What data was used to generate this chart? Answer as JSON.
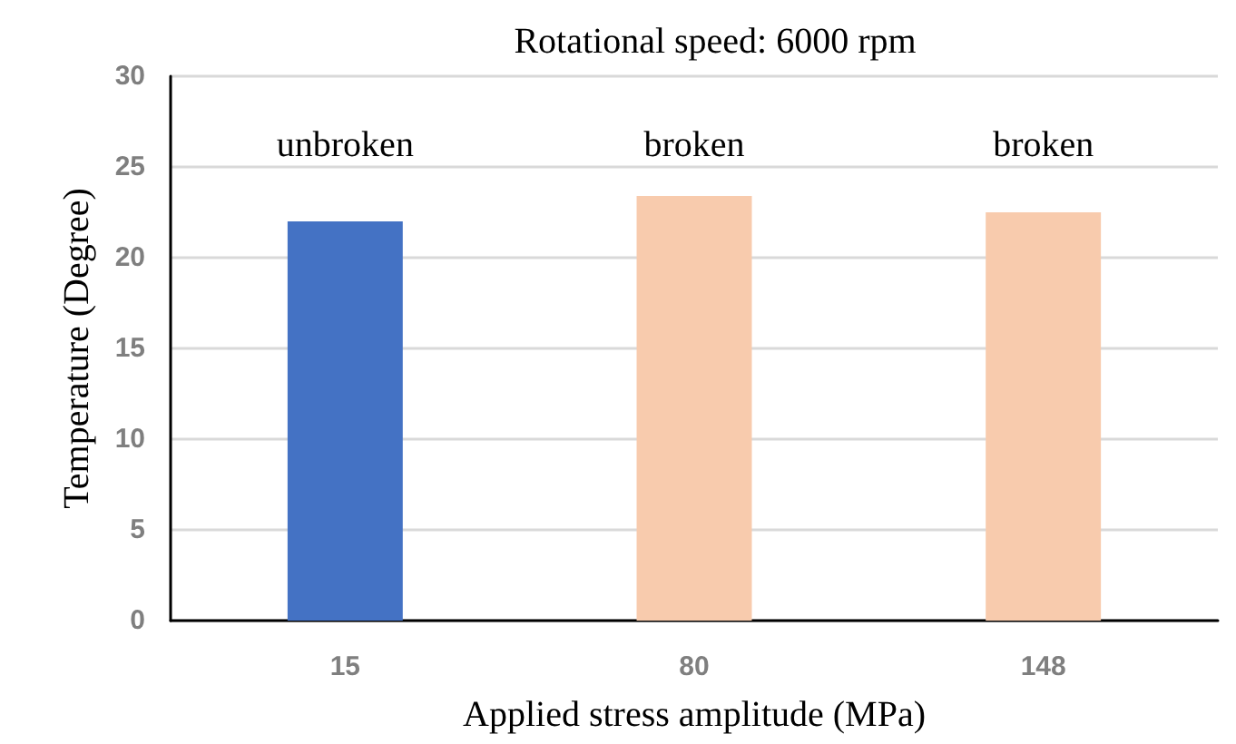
{
  "chart_data": {
    "type": "bar",
    "title": "Rotational speed: 6000 rpm",
    "xlabel": "Applied stress amplitude (MPa)",
    "ylabel": "Temperature (Degree)",
    "categories": [
      "15",
      "80",
      "148"
    ],
    "values": [
      22.0,
      23.4,
      22.5
    ],
    "colors": [
      "#4472c4",
      "#f8cbad",
      "#f8cbad"
    ],
    "ylim": [
      0,
      30
    ],
    "yticks": [
      0,
      5,
      10,
      15,
      20,
      25,
      30
    ],
    "grid": "y",
    "annotations": [
      "unbroken",
      "broken",
      "broken"
    ]
  }
}
